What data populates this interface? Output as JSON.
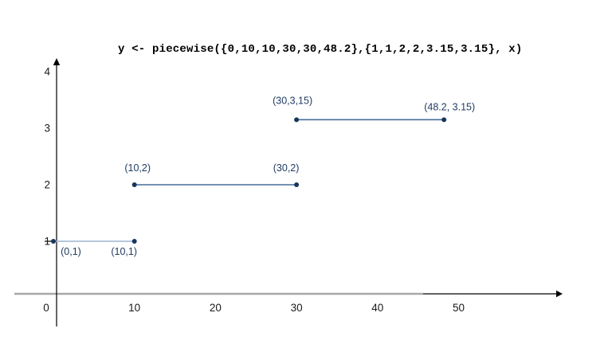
{
  "chart_data": {
    "type": "line",
    "title": "y <- piecewise({0,10,10,30,30,48.2},{1,1,2,2,3.15,3.15}, x)",
    "xlabel": "",
    "ylabel": "",
    "xlim": [
      0,
      62
    ],
    "ylim": [
      0,
      4.3
    ],
    "grid": false,
    "legend": "none",
    "x_ticks": [
      0,
      10,
      20,
      30,
      40,
      50
    ],
    "y_ticks": [
      1,
      2,
      3,
      4
    ],
    "segments": [
      {
        "name": "segment-1",
        "points": [
          [
            0,
            1
          ],
          [
            10,
            1
          ]
        ],
        "line_color": "#9db6cf",
        "labels": [
          {
            "text": "(0,1)",
            "dx": 22,
            "dy": 17
          },
          {
            "text": "(10,1)",
            "dx": -13,
            "dy": 17
          }
        ]
      },
      {
        "name": "segment-2",
        "points": [
          [
            10,
            2
          ],
          [
            30,
            2
          ]
        ],
        "line_color": "#476c99",
        "labels": [
          {
            "text": "(10,2)",
            "dx": 4,
            "dy": -17
          },
          {
            "text": "(30,2)",
            "dx": -13,
            "dy": -17
          }
        ]
      },
      {
        "name": "segment-3",
        "points": [
          [
            30,
            3.15
          ],
          [
            48.2,
            3.15
          ]
        ],
        "line_color": "#476c99",
        "labels": [
          {
            "text": "(30,3,15)",
            "dx": -5,
            "dy": -20
          },
          {
            "text": "(48.2, 3.15)",
            "dx": 7,
            "dy": -12
          }
        ]
      }
    ],
    "point_color": "#17365d",
    "label_color": "#1f3c61",
    "axis_color": "#000000",
    "x_axis_overlay_color": "#a8a8a8",
    "tick_label_color": "#1a1a1a",
    "background_color": "#ffffff"
  }
}
